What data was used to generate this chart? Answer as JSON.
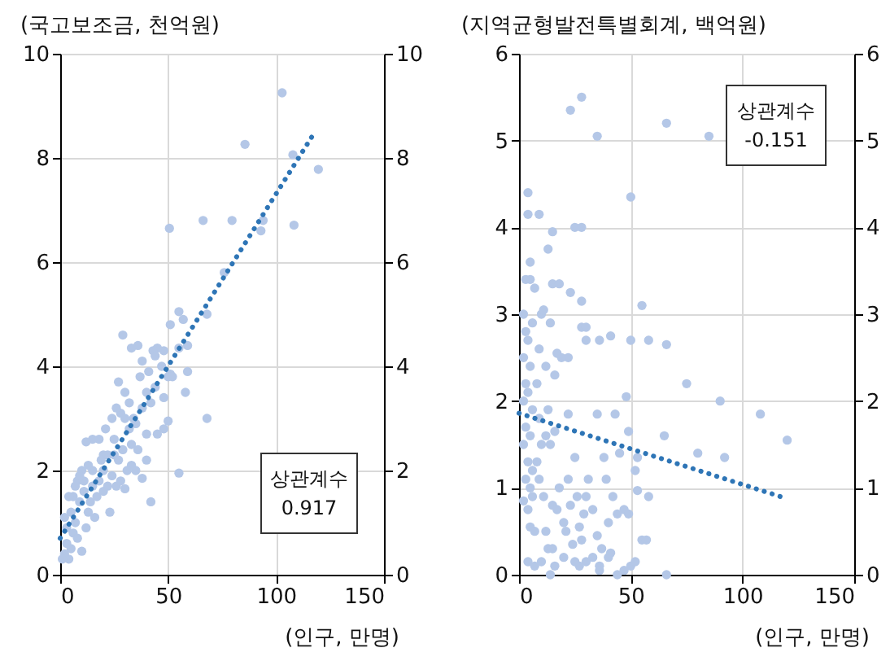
{
  "chart_data": [
    {
      "type": "scatter",
      "ylabel": "(국고보조금, 천억원)",
      "xlabel": "(인구, 만명)",
      "xlim": [
        0,
        150
      ],
      "xticks": [
        0,
        50,
        100,
        150
      ],
      "ylim": [
        0,
        10
      ],
      "yticks": [
        0,
        2,
        4,
        6,
        8,
        10
      ],
      "y2lim": [
        0,
        10
      ],
      "y2ticks": [
        0,
        2,
        4,
        6,
        8,
        10
      ],
      "grid": true,
      "annotations": [
        "상관계수",
        "0.917"
      ],
      "series": [
        {
          "color": "#b4c7e7",
          "marker": "circle",
          "x": [
            102.8,
            85.6,
            107.8,
            119.6,
            108.3,
            50.6,
            66.2,
            79.6,
            93,
            94,
            76,
            68,
            55,
            51,
            57,
            59,
            55,
            48,
            45,
            43,
            36,
            33,
            29,
            27,
            30,
            37,
            40,
            48,
            50,
            51,
            59,
            58,
            68,
            55,
            50,
            42,
            45,
            40,
            48,
            35,
            38,
            30,
            23,
            20,
            25,
            28,
            30,
            32,
            33,
            25,
            20,
            18,
            15,
            12,
            15,
            18,
            22,
            10,
            8,
            6,
            5,
            7,
            3,
            2,
            4,
            10,
            12,
            13,
            9,
            11,
            14,
            16,
            6,
            3,
            1,
            5,
            8,
            17,
            20,
            24,
            27,
            29,
            35,
            38,
            42,
            44,
            47,
            52,
            26,
            24,
            21,
            19,
            13,
            11,
            7,
            9,
            4,
            2,
            15,
            36,
            33,
            31,
            40,
            41,
            44,
            38,
            22,
            26,
            28,
            32,
            34
          ],
          "values": [
            9.25,
            8.26,
            8.06,
            7.78,
            6.71,
            6.65,
            6.8,
            6.8,
            6.6,
            6.8,
            5.8,
            5.0,
            5.05,
            4.8,
            4.9,
            4.4,
            4.35,
            4.3,
            4.35,
            4.3,
            4.4,
            4.35,
            4.6,
            3.7,
            3.5,
            3.8,
            3.5,
            3.4,
            3.8,
            3.85,
            3.9,
            3.5,
            3.0,
            1.95,
            2.95,
            1.4,
            2.7,
            2.7,
            2.8,
            2.0,
            1.85,
            1.65,
            1.2,
            2.0,
            2.3,
            3.1,
            3.0,
            2.8,
            2.5,
            2.6,
            2.3,
            2.6,
            2.6,
            2.55,
            2.0,
            1.8,
            1.7,
            2.0,
            1.8,
            1.5,
            1.2,
            1.0,
            0.6,
            0.4,
            0.3,
            0.45,
            0.9,
            1.2,
            1.4,
            1.6,
            1.4,
            1.1,
            0.8,
            0.9,
            0.3,
            0.5,
            0.7,
            1.5,
            1.6,
            1.9,
            2.2,
            2.4,
            2.9,
            3.2,
            3.3,
            3.6,
            4.0,
            3.8,
            3.2,
            3.0,
            2.8,
            2.2,
            2.1,
            1.8,
            1.7,
            1.9,
            1.5,
            1.1,
            1.7,
            2.4,
            2.1,
            2.0,
            2.2,
            3.9,
            4.2,
            4.1,
            2.3,
            1.7,
            1.8,
            3.3,
            3.0
          ]
        },
        {
          "type": "line",
          "color": "#2e75b6",
          "line_style": "dotted",
          "marker": "none",
          "x": [
            0,
            118
          ],
          "values": [
            0.7,
            8.5
          ]
        }
      ]
    },
    {
      "type": "scatter",
      "ylabel": "(지역균형발전특별회계, 백억원)",
      "xlabel": "(인구, 만명)",
      "xlim": [
        0,
        150
      ],
      "xticks": [
        0,
        50,
        100,
        150
      ],
      "ylim": [
        0,
        6
      ],
      "yticks": [
        0,
        1,
        2,
        3,
        4,
        5,
        6
      ],
      "y2lim": [
        0,
        6
      ],
      "y2ticks": [
        0,
        1,
        2,
        3,
        4,
        5,
        6
      ],
      "grid": true,
      "annotations": [
        "상관계수",
        "-0.151"
      ],
      "series": [
        {
          "color": "#b4c7e7",
          "marker": "circle",
          "x": [
            23,
            28,
            35,
            66,
            85,
            50,
            4,
            4,
            9,
            15,
            25,
            28,
            13,
            5,
            3,
            5,
            15,
            18,
            23,
            28,
            55,
            28,
            30,
            36,
            41,
            30,
            50,
            58,
            66,
            75,
            90,
            108,
            120,
            92,
            80,
            48,
            35,
            43,
            22,
            17,
            22,
            49,
            65,
            52,
            53,
            58,
            55,
            57,
            66,
            50,
            47,
            44,
            40,
            36,
            33,
            30,
            27,
            2,
            3,
            4,
            2,
            5,
            3,
            4,
            2,
            6,
            3,
            5,
            2,
            4,
            3,
            6,
            2,
            4,
            5,
            4,
            7,
            8,
            9,
            10,
            11,
            12,
            13,
            10,
            9,
            11,
            12,
            14,
            13,
            15,
            17,
            18,
            20,
            21,
            22,
            23,
            24,
            25,
            26,
            27,
            29,
            30,
            31,
            33,
            35,
            37,
            38,
            39,
            40,
            42,
            44,
            45,
            47,
            49,
            19,
            16,
            14,
            7,
            6,
            8,
            15,
            16,
            20,
            10,
            7,
            5,
            6,
            9,
            12,
            14,
            16,
            25,
            28,
            36,
            41,
            52,
            53
          ],
          "values": [
            5.35,
            5.5,
            5.05,
            5.2,
            5.05,
            4.35,
            4.4,
            4.15,
            4.15,
            3.95,
            4.0,
            4.0,
            3.75,
            3.6,
            3.4,
            3.4,
            3.35,
            3.35,
            3.25,
            3.15,
            3.1,
            2.85,
            2.85,
            2.7,
            2.75,
            2.7,
            2.7,
            2.7,
            2.65,
            2.2,
            2.0,
            1.85,
            1.55,
            1.35,
            1.4,
            2.05,
            1.85,
            1.85,
            2.5,
            2.55,
            1.85,
            1.65,
            1.6,
            1.2,
            0.97,
            0.9,
            0.4,
            0.4,
            0.0,
            0.1,
            0.05,
            0.0,
            0.2,
            0.1,
            0.2,
            0.15,
            0.1,
            3.0,
            2.8,
            2.7,
            2.5,
            2.4,
            2.2,
            2.1,
            2.0,
            1.9,
            1.7,
            1.6,
            1.5,
            1.3,
            1.1,
            0.9,
            0.85,
            0.75,
            0.55,
            0.15,
            0.5,
            2.2,
            2.6,
            3.0,
            3.05,
            2.4,
            1.9,
            1.5,
            1.1,
            0.9,
            0.5,
            0.0,
            0.3,
            0.8,
            0.75,
            1.0,
            0.6,
            0.5,
            1.1,
            0.8,
            0.35,
            1.35,
            0.9,
            0.55,
            0.7,
            0.9,
            1.1,
            0.75,
            0.45,
            0.3,
            1.35,
            1.1,
            0.6,
            0.9,
            0.7,
            1.4,
            0.75,
            0.7,
            2.5,
            2.3,
            2.9,
            3.3,
            2.9,
            1.3,
            0.3,
            0.1,
            0.2,
            0.15,
            0.1,
            1.0,
            1.2,
            1.8,
            1.6,
            1.5,
            1.65,
            0.15,
            0.4,
            0.05,
            0.25,
            0.15,
            1.35
          ]
        },
        {
          "type": "line",
          "color": "#2e75b6",
          "line_style": "dotted",
          "marker": "none",
          "x": [
            0,
            117
          ],
          "values": [
            1.86,
            0.9
          ]
        }
      ]
    }
  ]
}
